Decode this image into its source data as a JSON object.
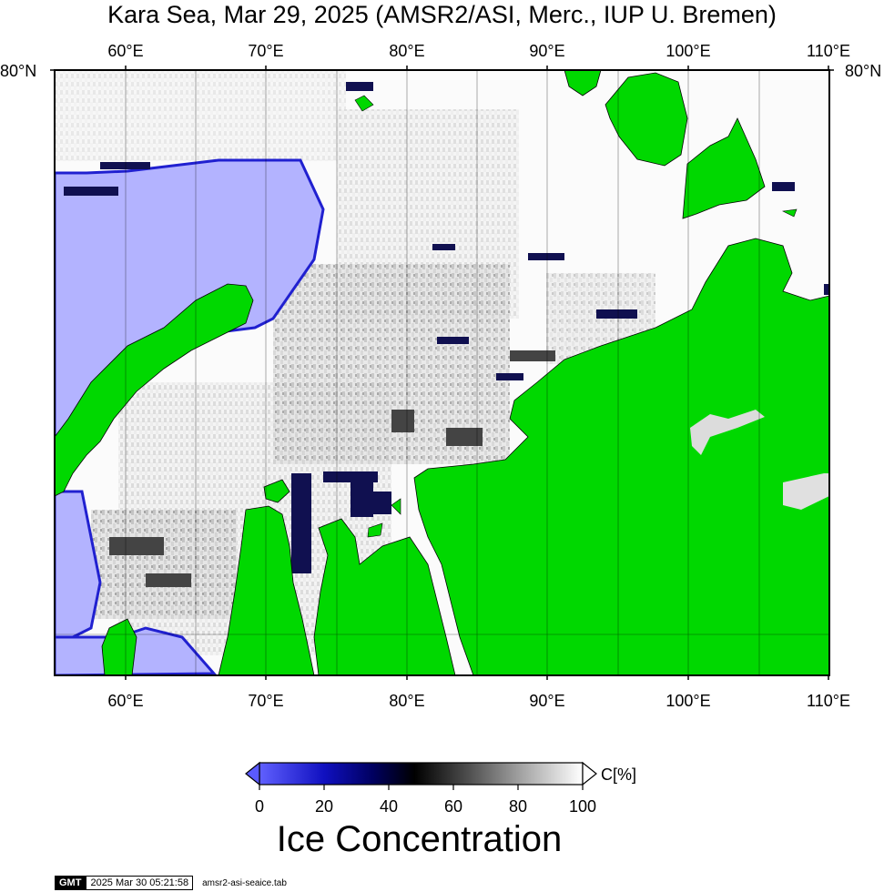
{
  "title": "Kara Sea, Mar 29, 2025 (AMSR2/ASI, Merc., IUP U. Bremen)",
  "map": {
    "lon_ticks_top": [
      "60°E",
      "70°E",
      "80°E",
      "90°E",
      "100°E",
      "110°E"
    ],
    "lon_ticks_bottom": [
      "60°E",
      "70°E",
      "80°E",
      "90°E",
      "100°E",
      "110°E"
    ],
    "lat_label_left": "80°N",
    "lat_label_right": "80°N",
    "extent": {
      "lon_min": 55,
      "lon_max": 110,
      "lat_max": 80
    },
    "colors": {
      "land": "#00d800",
      "open_water": "#b3b3ff",
      "ice_high": "#ffffff",
      "frame": "#000000",
      "grid": "#000000"
    }
  },
  "colorbar": {
    "unit_label": "C[%]",
    "ticks": [
      "0",
      "20",
      "40",
      "60",
      "80",
      "100"
    ],
    "title": "Ice Concentration",
    "stops": [
      "#5a5aff",
      "#0000a0",
      "#000020",
      "#000000",
      "#505050",
      "#a0a0a0",
      "#ffffff"
    ]
  },
  "footer": {
    "logo": "GMT",
    "timestamp": "2025 Mar 30 05:21:58",
    "filename": "amsr2-asi-seaice.tab"
  }
}
